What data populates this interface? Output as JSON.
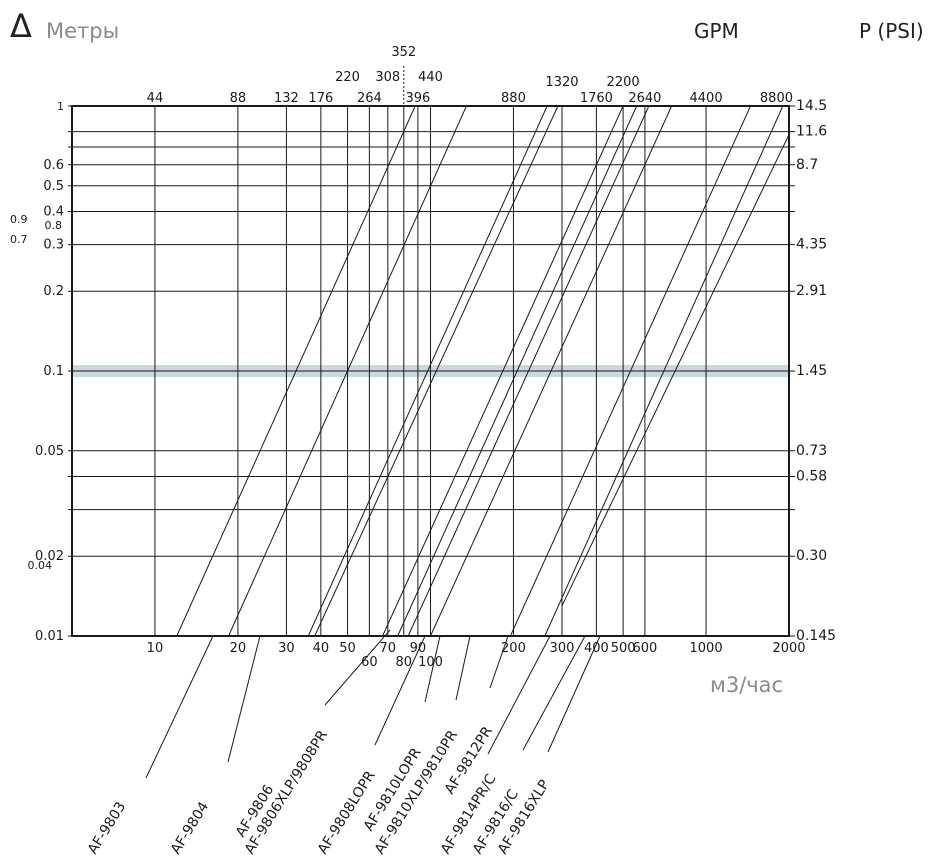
{
  "header": {
    "delta_symbol": "Δ",
    "y_title": "Метры",
    "gpm_title": "GPM",
    "psi_title": "P (PSI)",
    "x_unit": "м3/час"
  },
  "colors": {
    "line": "#1a1a1a",
    "highlight_band": "#c9d7de",
    "muted_text": "#8a8a8a"
  },
  "chart_data": {
    "type": "line",
    "x_scale": "log",
    "y_scale": "log",
    "xlim": [
      5,
      2000
    ],
    "ylim": [
      0.01,
      1
    ],
    "x_ticks": [
      {
        "value": 10,
        "label": "10"
      },
      {
        "value": 20,
        "label": "20"
      },
      {
        "value": 30,
        "label": "30"
      },
      {
        "value": 40,
        "label": "40"
      },
      {
        "value": 50,
        "label": "50"
      },
      {
        "value": 60,
        "label": "60"
      },
      {
        "value": 70,
        "label": "70"
      },
      {
        "value": 80,
        "label": "80"
      },
      {
        "value": 90,
        "label": "90"
      },
      {
        "value": 100,
        "label": "100"
      },
      {
        "value": 200,
        "label": "200"
      },
      {
        "value": 300,
        "label": "300"
      },
      {
        "value": 400,
        "label": "400"
      },
      {
        "value": 500,
        "label": "500"
      },
      {
        "value": 600,
        "label": "600"
      },
      {
        "value": 1000,
        "label": "1000"
      },
      {
        "value": 2000,
        "label": "2000"
      }
    ],
    "gpm_ticks": [
      {
        "value": 10,
        "label": "44"
      },
      {
        "value": 20,
        "label": "88"
      },
      {
        "value": 30,
        "label": "132"
      },
      {
        "value": 40,
        "label": "176"
      },
      {
        "value": 50,
        "label": "220"
      },
      {
        "value": 60,
        "label": "264"
      },
      {
        "value": 70,
        "label": "308"
      },
      {
        "value": 80,
        "label": "352"
      },
      {
        "value": 90,
        "label": "396"
      },
      {
        "value": 100,
        "label": "440"
      },
      {
        "value": 200,
        "label": "880"
      },
      {
        "value": 300,
        "label": "1320"
      },
      {
        "value": 400,
        "label": "1760"
      },
      {
        "value": 500,
        "label": "2200"
      },
      {
        "value": 600,
        "label": "2640"
      },
      {
        "value": 1000,
        "label": "4400"
      },
      {
        "value": 2000,
        "label": "8800"
      }
    ],
    "y_ticks": [
      {
        "value": 1,
        "label": "1"
      },
      {
        "value": 0.6,
        "label": "0.6"
      },
      {
        "value": 0.5,
        "label": "0.5"
      },
      {
        "value": 0.4,
        "label": "0.4"
      },
      {
        "value": 0.3,
        "label": "0.3"
      },
      {
        "value": 0.2,
        "label": "0.2"
      },
      {
        "value": 0.1,
        "label": "0.1"
      },
      {
        "value": 0.05,
        "label": "0.05"
      },
      {
        "value": 0.02,
        "label": "0.02"
      },
      {
        "value": 0.01,
        "label": "0.01"
      }
    ],
    "y_extra_labels": [
      "0.9",
      "0.8",
      "0.7",
      "0.04"
    ],
    "extra_gridlines": [
      0.8,
      0.7,
      0.04,
      0.03
    ],
    "psi_ticks": [
      {
        "value": 1,
        "label": "14.5"
      },
      {
        "value": 0.8,
        "label": "11.6"
      },
      {
        "value": 0.6,
        "label": "8.7"
      },
      {
        "value": 0.3,
        "label": "4.35"
      },
      {
        "value": 0.2,
        "label": "2.91"
      },
      {
        "value": 0.1,
        "label": "1.45"
      },
      {
        "value": 0.05,
        "label": "0.73"
      },
      {
        "value": 0.04,
        "label": "0.58"
      },
      {
        "value": 0.02,
        "label": "0.30"
      },
      {
        "value": 0.01,
        "label": "0.145"
      }
    ],
    "highlight_y": 0.1,
    "series": [
      {
        "name": "AF-9803",
        "points": [
          [
            12,
            0.01
          ],
          [
            88,
            1
          ]
        ]
      },
      {
        "name": "AF-9804",
        "points": [
          [
            18.5,
            0.01
          ],
          [
            135,
            1
          ]
        ]
      },
      {
        "name": "AF-9806",
        "points": [
          [
            36,
            0.01
          ],
          [
            265,
            1
          ]
        ]
      },
      {
        "name": "AF-9806XLP/9808PR",
        "points": [
          [
            38,
            0.01
          ],
          [
            290,
            1
          ]
        ]
      },
      {
        "name": "AF-9808LOPR",
        "points": [
          [
            67,
            0.01
          ],
          [
            500,
            1
          ]
        ]
      },
      {
        "name": "AF-9810LOPR",
        "points": [
          [
            76,
            0.01
          ],
          [
            560,
            1
          ]
        ]
      },
      {
        "name": "AF-9810XLP/9810PR",
        "points": [
          [
            83,
            0.01
          ],
          [
            620,
            1
          ]
        ]
      },
      {
        "name": "AF-9812PR",
        "points": [
          [
            100,
            0.01
          ],
          [
            750,
            1
          ]
        ]
      },
      {
        "name": "AF-9814PR/C",
        "points": [
          [
            195,
            0.01
          ],
          [
            1450,
            1
          ]
        ]
      },
      {
        "name": "AF-9816/C",
        "points": [
          [
            260,
            0.01
          ],
          [
            1900,
            1
          ]
        ]
      },
      {
        "name": "AF-9816XLP",
        "points": [
          [
            300,
            0.013
          ],
          [
            2000,
            0.78
          ]
        ]
      }
    ]
  }
}
